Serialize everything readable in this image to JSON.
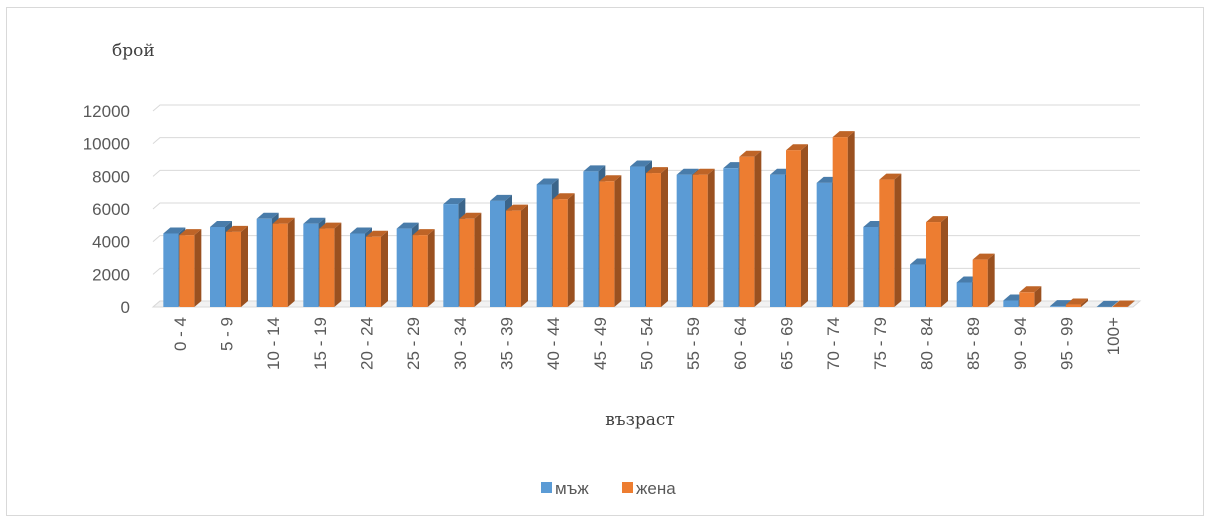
{
  "chart_data": {
    "type": "bar",
    "ylabel": "брой",
    "xlabel": "възраст",
    "ylim": [
      0,
      12000
    ],
    "yticks": [
      0,
      2000,
      4000,
      6000,
      8000,
      10000,
      12000
    ],
    "grid": true,
    "legend_position": "bottom",
    "categories": [
      "0 - 4",
      "5 - 9",
      "10 - 14",
      "15 - 19",
      "20 - 24",
      "25 - 29",
      "30 - 34",
      "35 - 39",
      "40 - 44",
      "45 - 49",
      "50 - 54",
      "55 - 59",
      "60 - 64",
      "65 - 69",
      "70 - 74",
      "75 - 79",
      "80 - 84",
      "85 - 89",
      "90 - 94",
      "95 - 99",
      "100+"
    ],
    "series": [
      {
        "name": "мъж",
        "color": "#5b9bd5",
        "values": [
          4500,
          4900,
          5400,
          5100,
          4500,
          4800,
          6300,
          6500,
          7500,
          8300,
          8600,
          8100,
          8500,
          8100,
          7600,
          4900,
          2600,
          1500,
          400,
          50,
          10
        ]
      },
      {
        "name": "жена",
        "color": "#ed7d31",
        "values": [
          4400,
          4600,
          5100,
          4800,
          4300,
          4400,
          5400,
          5900,
          6600,
          7700,
          8200,
          8100,
          9200,
          9600,
          10400,
          7800,
          5200,
          2900,
          900,
          150,
          30
        ]
      }
    ]
  }
}
